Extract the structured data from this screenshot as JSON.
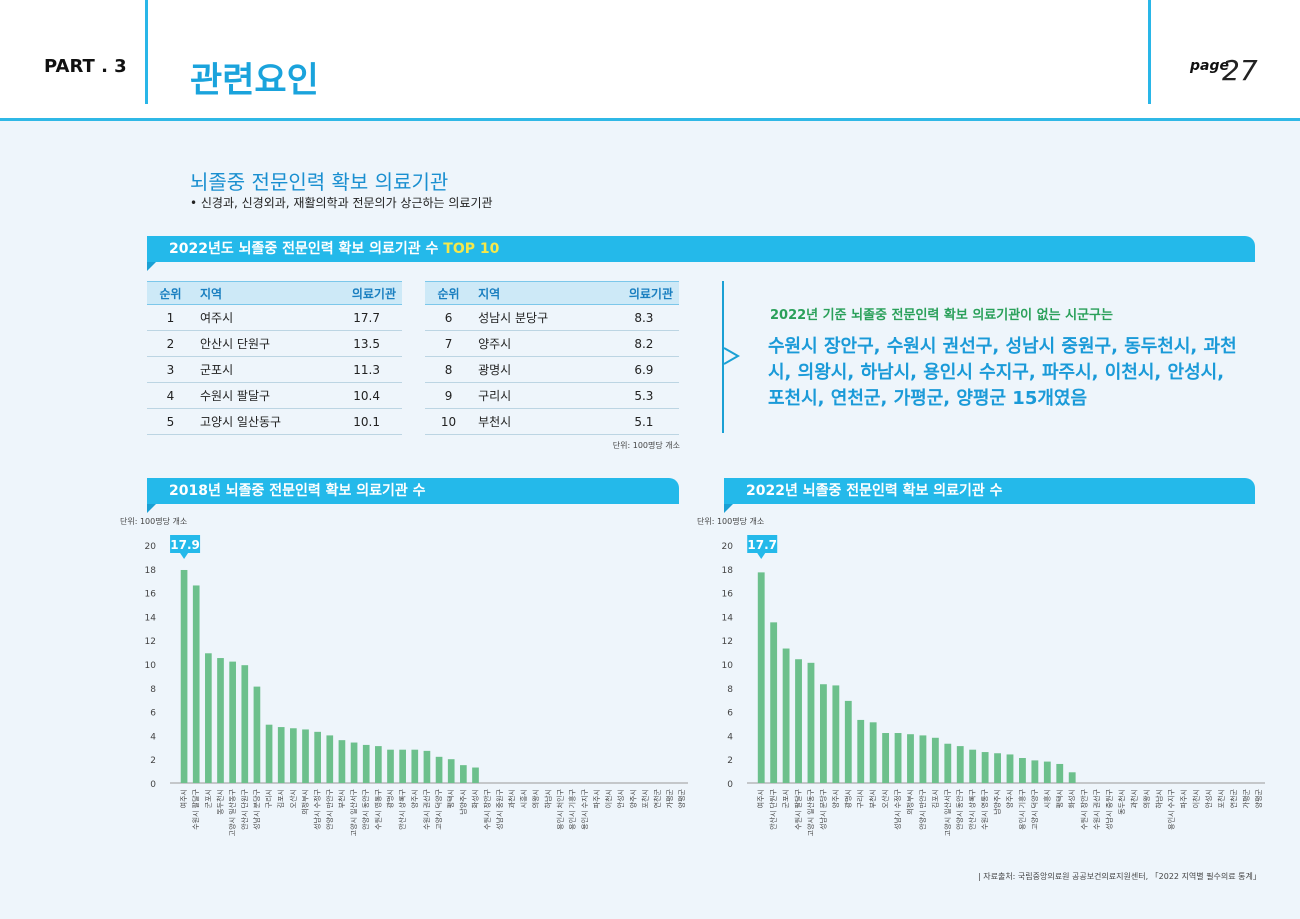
{
  "header": {
    "part": "PART . 3",
    "title": "관련요인",
    "page_label": "page",
    "page_number": "27"
  },
  "section": {
    "title": "뇌졸중 전문인력 확보 의료기관",
    "subtitle": "• 신경과, 신경외과, 재활의학과 전문의가 상근하는 의료기관"
  },
  "top10": {
    "banner_text": "2022년도 뇌졸중 전문인력 확보 의료기관 수 ",
    "banner_highlight": "TOP 10",
    "headers": [
      "순위",
      "지역",
      "의료기관"
    ],
    "left_rows": [
      [
        "1",
        "여주시",
        "17.7"
      ],
      [
        "2",
        "안산시 단원구",
        "13.5"
      ],
      [
        "3",
        "군포시",
        "11.3"
      ],
      [
        "4",
        "수원시 팔달구",
        "10.4"
      ],
      [
        "5",
        "고양시 일산동구",
        "10.1"
      ]
    ],
    "right_rows": [
      [
        "6",
        "성남시 분당구",
        "8.3"
      ],
      [
        "7",
        "양주시",
        "8.2"
      ],
      [
        "8",
        "광명시",
        "6.9"
      ],
      [
        "9",
        "구리시",
        "5.3"
      ],
      [
        "10",
        "부천시",
        "5.1"
      ]
    ],
    "unit": "단위: 100명당 개소"
  },
  "callout": {
    "title": "2022년 기준 뇌졸중 전문인력 확보 의료기관이 없는 시군구는",
    "body": "수원시 장안구, 수원시 권선구, 성남시 중원구, 동두천시, 과천시, 의왕시, 하남시, 용인시 수지구, 파주시, 이천시, 안성시, 포천시, 연천군, 가평군, 양평군 15개였음"
  },
  "colors": {
    "accent": "#24b9ea",
    "bar": "#6cc08c",
    "callout_green": "#2aa05a",
    "callout_blue": "#1a9ad8"
  },
  "chart_data": [
    {
      "type": "bar",
      "title": "2018년 뇌졸중 전문인력 확보 의료기관 수",
      "unit_label": "단위: 100명당 개소",
      "ylim": [
        0,
        20
      ],
      "yticks": [
        0,
        2,
        4,
        6,
        8,
        10,
        12,
        14,
        16,
        18,
        20
      ],
      "max_label": "17.9",
      "categories": [
        "여주시",
        "수원시 팔달구",
        "군포시",
        "동두천시",
        "고양시 일산동구",
        "안산시 단원구",
        "성남시 분당구",
        "구리시",
        "김포시",
        "오산시",
        "의정부시",
        "성남시 수정구",
        "안양시 만안구",
        "부천시",
        "고양시 일산서구",
        "안양시 동안구",
        "수원시 영통구",
        "광명시",
        "안산시 상록구",
        "양주시",
        "수원시 권선구",
        "고양시 덕양구",
        "평택시",
        "남양주시",
        "화성시",
        "수원시 장안구",
        "성남시 중원구",
        "과천시",
        "시흥시",
        "의왕시",
        "하남시",
        "용인시 처인구",
        "용인시 기흥구",
        "용인시 수지구",
        "파주시",
        "이천시",
        "안성시",
        "양주시",
        "포천시",
        "연천군",
        "가평군",
        "양평군"
      ],
      "values": [
        17.9,
        16.6,
        10.9,
        10.5,
        10.2,
        9.9,
        8.1,
        4.9,
        4.7,
        4.6,
        4.5,
        4.3,
        4.0,
        3.6,
        3.4,
        3.2,
        3.1,
        2.8,
        2.8,
        2.8,
        2.7,
        2.2,
        2.0,
        1.5,
        1.3,
        0,
        0,
        0,
        0,
        0,
        0,
        0,
        0,
        0,
        0,
        0,
        0,
        0,
        0,
        0,
        0,
        0
      ]
    },
    {
      "type": "bar",
      "title": "2022년 뇌졸중 전문인력 확보 의료기관 수",
      "unit_label": "단위: 100명당 개소",
      "ylim": [
        0,
        20
      ],
      "yticks": [
        0,
        2,
        4,
        6,
        8,
        10,
        12,
        14,
        16,
        18,
        20
      ],
      "max_label": "17.7",
      "categories": [
        "여주시",
        "안산시 단원구",
        "군포시",
        "수원시 팔달구",
        "고양시 일산동구",
        "성남시 분당구",
        "양주시",
        "광명시",
        "구리시",
        "부천시",
        "오산시",
        "성남시 수정구",
        "의정부시",
        "안양시 만안구",
        "김포시",
        "고양시 일산서구",
        "안양시 동안구",
        "안산시 상록구",
        "수원시 영통구",
        "남양주시",
        "양주시",
        "용인시 기흥구",
        "고양시 덕양구",
        "시흥시",
        "평택시",
        "화성시",
        "수원시 장안구",
        "수원시 권선구",
        "성남시 중원구",
        "동두천시",
        "과천시",
        "의왕시",
        "하남시",
        "용인시 수지구",
        "파주시",
        "이천시",
        "안성시",
        "포천시",
        "연천군",
        "가평군",
        "양평군"
      ],
      "values": [
        17.7,
        13.5,
        11.3,
        10.4,
        10.1,
        8.3,
        8.2,
        6.9,
        5.3,
        5.1,
        4.2,
        4.2,
        4.1,
        4.0,
        3.8,
        3.3,
        3.1,
        2.8,
        2.6,
        2.5,
        2.4,
        2.1,
        1.9,
        1.8,
        1.6,
        0.9,
        0,
        0,
        0,
        0,
        0,
        0,
        0,
        0,
        0,
        0,
        0,
        0,
        0,
        0,
        0
      ]
    }
  ],
  "source": "| 자료출처: 국립중앙의료원 공공보건의료지원센터, 「2022 지역별 필수의료 통계」"
}
